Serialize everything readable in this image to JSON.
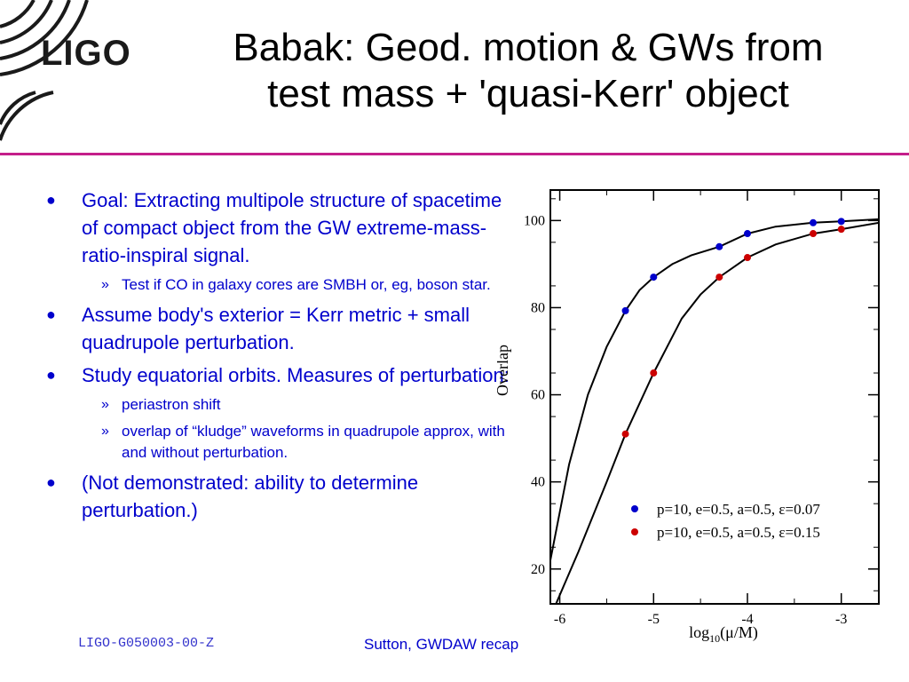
{
  "header": {
    "logo_text": "LIGO",
    "title_line1": "Babak: Geod. motion & GWs from",
    "title_line2": "test mass + 'quasi-Kerr' object"
  },
  "bullets": [
    {
      "level": 1,
      "text": "Goal:  Extracting multipole structure of spacetime of compact object from the GW extreme-mass-ratio-inspiral signal."
    },
    {
      "level": 2,
      "text": "Test if CO in galaxy cores are SMBH or, eg, boson star."
    },
    {
      "level": 1,
      "text": "Assume body's exterior = Kerr metric + small quadrupole perturbation."
    },
    {
      "level": 1,
      "text": "Study equatorial orbits.  Measures of perturbation:"
    },
    {
      "level": 2,
      "text": "periastron shift"
    },
    {
      "level": 2,
      "text": "overlap of “kludge” waveforms in quadrupole approx, with and without perturbation."
    },
    {
      "level": 1,
      "text": "(Not demonstrated: ability to determine perturbation.)"
    }
  ],
  "markers": {
    "level1": "●",
    "level2": "»"
  },
  "footer": {
    "doc_id": "LIGO-G050003-00-Z",
    "credit": "Sutton, GWDAW recap"
  },
  "chart_data": {
    "type": "scatter",
    "xlabel_main": "log",
    "xlabel_sub": "10",
    "xlabel_tail": "(μ/M)",
    "ylabel": "Overlap",
    "xlim": [
      -6.1,
      -2.6
    ],
    "ylim": [
      12,
      107
    ],
    "xticks": [
      -6,
      -5,
      -4,
      -3
    ],
    "yticks": [
      20,
      40,
      60,
      80,
      100
    ],
    "legend_position": "bottom-right",
    "series": [
      {
        "name": "p=10, e=0.5, a=0.5, ε=0.07",
        "color": "#0000cc",
        "points": [
          [
            -5.3,
            79.3
          ],
          [
            -5.0,
            87.0
          ],
          [
            -4.3,
            94.0
          ],
          [
            -4.0,
            97.0
          ],
          [
            -3.3,
            99.5
          ],
          [
            -3.0,
            99.8
          ]
        ],
        "curve": [
          [
            -6.1,
            22
          ],
          [
            -5.9,
            44
          ],
          [
            -5.7,
            60
          ],
          [
            -5.5,
            71
          ],
          [
            -5.3,
            79.3
          ],
          [
            -5.15,
            84
          ],
          [
            -5.0,
            87.0
          ],
          [
            -4.8,
            90.0
          ],
          [
            -4.6,
            92.0
          ],
          [
            -4.3,
            94.0
          ],
          [
            -4.0,
            97.0
          ],
          [
            -3.7,
            98.6
          ],
          [
            -3.3,
            99.5
          ],
          [
            -3.0,
            99.8
          ],
          [
            -2.6,
            100.3
          ]
        ]
      },
      {
        "name": "p=10, e=0.5, a=0.5, ε=0.15",
        "color": "#cc0000",
        "points": [
          [
            -5.3,
            51.0
          ],
          [
            -5.0,
            65.0
          ],
          [
            -4.3,
            87.0
          ],
          [
            -4.0,
            91.5
          ],
          [
            -3.3,
            97.0
          ],
          [
            -3.0,
            98.0
          ]
        ],
        "curve": [
          [
            -6.1,
            9
          ],
          [
            -5.8,
            24
          ],
          [
            -5.5,
            40
          ],
          [
            -5.3,
            51.0
          ],
          [
            -5.0,
            65.0
          ],
          [
            -4.7,
            77.5
          ],
          [
            -4.5,
            83.0
          ],
          [
            -4.3,
            87.0
          ],
          [
            -4.0,
            91.5
          ],
          [
            -3.7,
            94.5
          ],
          [
            -3.3,
            97.0
          ],
          [
            -3.0,
            98.0
          ],
          [
            -2.6,
            99.5
          ]
        ]
      }
    ]
  }
}
